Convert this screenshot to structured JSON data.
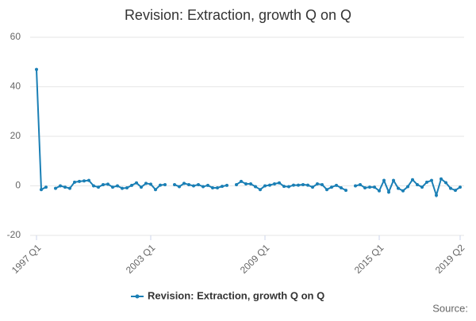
{
  "chart_data": {
    "type": "line",
    "title": "Revision: Extraction, growth Q on Q",
    "categories": [
      "1997 Q1",
      null,
      null,
      null,
      null,
      null,
      null,
      null,
      null,
      null,
      null,
      null,
      null,
      null,
      null,
      null,
      null,
      null,
      null,
      null,
      null,
      null,
      null,
      null,
      "2003 Q1",
      null,
      null,
      null,
      null,
      null,
      null,
      null,
      null,
      null,
      null,
      null,
      null,
      null,
      null,
      null,
      null,
      null,
      null,
      null,
      null,
      null,
      null,
      null,
      "2009 Q1",
      null,
      null,
      null,
      null,
      null,
      null,
      null,
      null,
      null,
      null,
      null,
      null,
      null,
      null,
      null,
      null,
      null,
      null,
      null,
      null,
      null,
      null,
      null,
      "2015 Q1",
      null,
      null,
      null,
      null,
      null,
      null,
      null,
      null,
      null,
      null,
      null,
      null,
      null,
      null,
      null,
      null,
      "2019 Q2"
    ],
    "series": [
      {
        "name": "Revision: Extraction, growth Q on Q",
        "color": "#1a7fb5",
        "values": [
          47,
          -1.5,
          -0.5,
          null,
          -1,
          0,
          -0.5,
          -1,
          1.5,
          1.8,
          2,
          2.2,
          0,
          -0.5,
          0.5,
          0.7,
          -0.5,
          0,
          -1,
          -0.8,
          0.2,
          1.2,
          -0.5,
          1,
          0.7,
          -1.5,
          0.3,
          0.5,
          null,
          0.5,
          -0.3,
          1,
          0.5,
          0,
          0.5,
          -0.3,
          0.2,
          -0.8,
          -0.8,
          -0.2,
          0.2,
          null,
          0.5,
          1.8,
          0.8,
          0.8,
          -0.3,
          -1.5,
          0,
          0.3,
          0.8,
          1.2,
          -0.2,
          -0.3,
          0.3,
          0.3,
          0.5,
          0.3,
          -0.5,
          0.8,
          0.5,
          -1.5,
          -0.5,
          0.2,
          -0.8,
          -1.8,
          null,
          0,
          0.5,
          -0.8,
          -0.5,
          -0.5,
          -2,
          2.2,
          -2.5,
          2.2,
          -1,
          -2,
          -0.3,
          2.5,
          0.5,
          -0.5,
          1.5,
          2.2,
          -3.8,
          2.8,
          1.3,
          -1,
          -1.8,
          -0.5
        ]
      }
    ],
    "ylim": [
      -20,
      60
    ],
    "yticks": [
      -20,
      0,
      20,
      40,
      60
    ],
    "grid": true,
    "legend": "bottom",
    "source": "Source:"
  }
}
